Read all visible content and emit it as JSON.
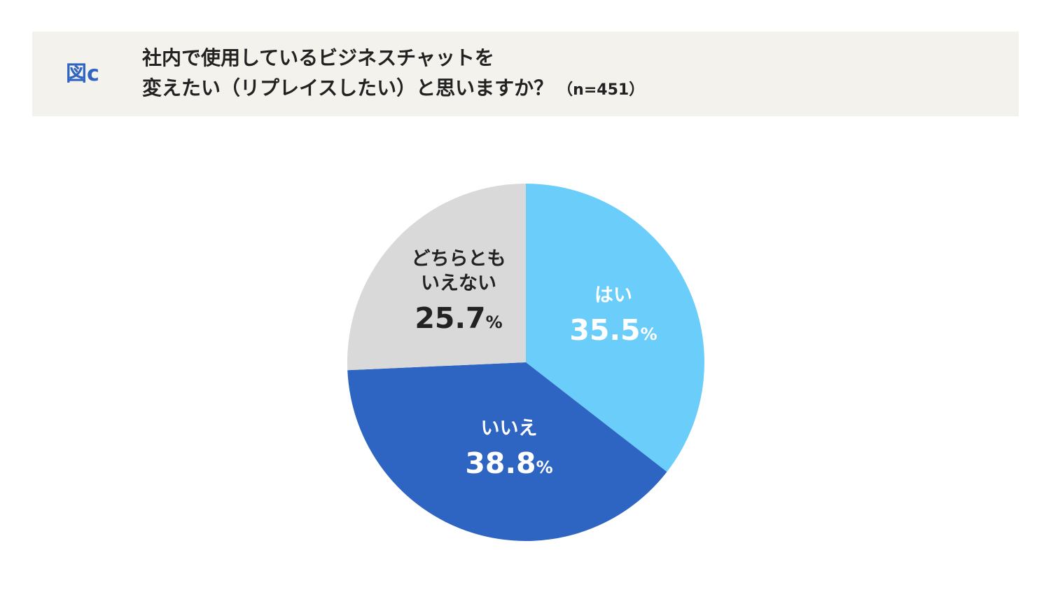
{
  "header": {
    "figure_label": "図c",
    "title_line1": "社内で使用しているビジネスチャットを",
    "title_line2": "変えたい（リプレイスしたい）と思いますか？",
    "sample_note": "（n=451）"
  },
  "chart_data": {
    "type": "pie",
    "start_angle_deg": 0,
    "direction": "clockwise",
    "slices": [
      {
        "label_lines": [
          "はい"
        ],
        "value": 35.5,
        "value_text": "35.5",
        "unit": "%",
        "color": "#6acdfa",
        "label_color": "#ffffff"
      },
      {
        "label_lines": [
          "いいえ"
        ],
        "value": 38.8,
        "value_text": "38.8",
        "unit": "%",
        "color": "#2f65c2",
        "label_color": "#ffffff"
      },
      {
        "label_lines": [
          "どちらとも",
          "いえない"
        ],
        "value": 25.7,
        "value_text": "25.7",
        "unit": "%",
        "color": "#d9d9d9",
        "label_color": "#222222"
      }
    ]
  }
}
